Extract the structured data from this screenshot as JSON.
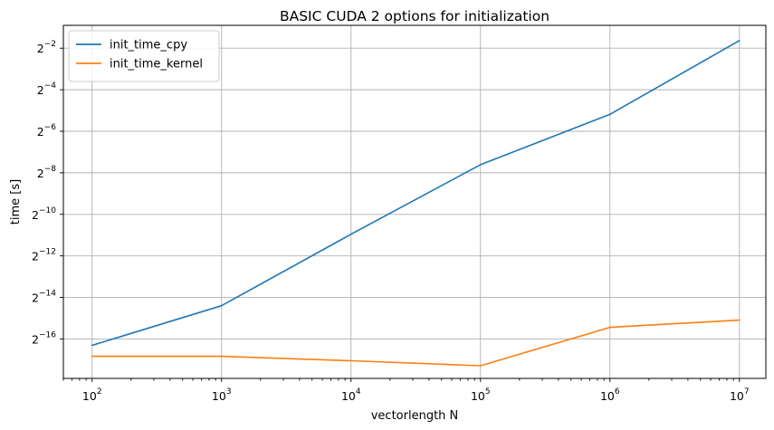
{
  "chart_data": {
    "type": "line",
    "title": "BASIC CUDA 2 options for initialization",
    "xlabel": "vectorlength N",
    "ylabel": "time [s]",
    "x_scale": "log10",
    "y_scale": "log2",
    "grid": true,
    "legend_position": "top-left",
    "xlim": [
      60,
      16000000
    ],
    "ylim_log2": [
      -17.9,
      -0.9
    ],
    "x_ticks": [
      {
        "value": 100,
        "base": "10",
        "exp": "2"
      },
      {
        "value": 1000,
        "base": "10",
        "exp": "3"
      },
      {
        "value": 10000,
        "base": "10",
        "exp": "4"
      },
      {
        "value": 100000,
        "base": "10",
        "exp": "5"
      },
      {
        "value": 1000000,
        "base": "10",
        "exp": "6"
      },
      {
        "value": 10000000,
        "base": "10",
        "exp": "7"
      }
    ],
    "y_ticks": [
      {
        "log2": -2,
        "base": "2",
        "exp": "−2"
      },
      {
        "log2": -4,
        "base": "2",
        "exp": "−4"
      },
      {
        "log2": -6,
        "base": "2",
        "exp": "−6"
      },
      {
        "log2": -8,
        "base": "2",
        "exp": "−8"
      },
      {
        "log2": -10,
        "base": "2",
        "exp": "−10"
      },
      {
        "log2": -12,
        "base": "2",
        "exp": "−12"
      },
      {
        "log2": -14,
        "base": "2",
        "exp": "−14"
      },
      {
        "log2": -16,
        "base": "2",
        "exp": "−16"
      }
    ],
    "x": [
      100,
      1000,
      10000,
      100000,
      1000000,
      10000000
    ],
    "series": [
      {
        "name": "init_time_cpy",
        "color": "#1f77b4",
        "values": [
          1.23e-05,
          4.63e-05,
          0.000504,
          0.00513,
          0.0275,
          0.323
        ]
      },
      {
        "name": "init_time_kernel",
        "color": "#ff7f0e",
        "values": [
          8.54e-06,
          8.54e-06,
          7.37e-06,
          6.24e-06,
          2.25e-05,
          2.86e-05
        ]
      }
    ]
  }
}
